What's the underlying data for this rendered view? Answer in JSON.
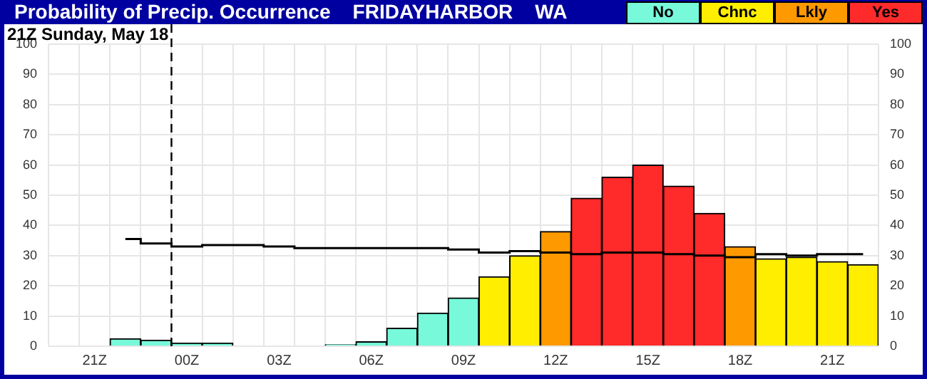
{
  "chart_data": {
    "type": "bar",
    "title": "Probability of Precip. Occurrence    FRIDAYHARBOR    WA",
    "subtitle": "21Z Sunday, May 18",
    "categories": [
      null,
      "21Z",
      null,
      null,
      "00Z",
      null,
      null,
      "03Z",
      null,
      null,
      "06Z",
      null,
      null,
      "09Z",
      null,
      null,
      "12Z",
      null,
      null,
      "15Z",
      null,
      null,
      "18Z",
      null,
      null,
      "21Z",
      null
    ],
    "series": [
      {
        "name": "No",
        "color": "#77f9da",
        "values": [
          null,
          null,
          2.5,
          2,
          1,
          1,
          0,
          0,
          0,
          0.5,
          1.5,
          6,
          11,
          16,
          null,
          null,
          null,
          null,
          null,
          null,
          null,
          null,
          null,
          null,
          null,
          null,
          null
        ]
      },
      {
        "name": "Chnc",
        "color": "#ffee00",
        "values": [
          null,
          null,
          null,
          null,
          null,
          null,
          null,
          null,
          null,
          null,
          null,
          null,
          null,
          null,
          23,
          30,
          null,
          null,
          null,
          null,
          null,
          null,
          null,
          29,
          29.5,
          28,
          27
        ]
      },
      {
        "name": "Lkly",
        "color": "#ff9900",
        "values": [
          null,
          null,
          null,
          null,
          null,
          null,
          null,
          null,
          null,
          null,
          null,
          null,
          null,
          null,
          null,
          null,
          38,
          null,
          null,
          null,
          null,
          null,
          33,
          null,
          null,
          null,
          null
        ]
      },
      {
        "name": "Yes",
        "color": "#ff2a2a",
        "values": [
          null,
          null,
          null,
          null,
          null,
          null,
          null,
          null,
          null,
          null,
          null,
          null,
          null,
          null,
          null,
          null,
          null,
          49,
          56,
          60,
          53,
          44,
          null,
          null,
          null,
          null,
          null
        ]
      },
      {
        "type": "step",
        "color": "#000000",
        "values": [
          null,
          null,
          35.5,
          34,
          33,
          33.5,
          33.5,
          33,
          32.5,
          32.5,
          32.5,
          32.5,
          32.5,
          32,
          31,
          31.5,
          31,
          30.5,
          31,
          31,
          30.5,
          30,
          29.5,
          30.5,
          30,
          30.5,
          30.5
        ]
      }
    ],
    "ylim": [
      0,
      100
    ],
    "yticks": [
      0,
      10,
      20,
      30,
      40,
      50,
      60,
      70,
      80,
      90,
      100
    ],
    "y2lim": [
      0,
      100
    ],
    "y2ticks": [
      0,
      10,
      20,
      30,
      40,
      50,
      60,
      70,
      80,
      90,
      100
    ],
    "ref_lines": [
      {
        "axis": "x",
        "value": "00Z",
        "line_style": "dashed",
        "color": "#000000"
      }
    ],
    "grid": true,
    "legend": "top right",
    "marker": "none"
  }
}
